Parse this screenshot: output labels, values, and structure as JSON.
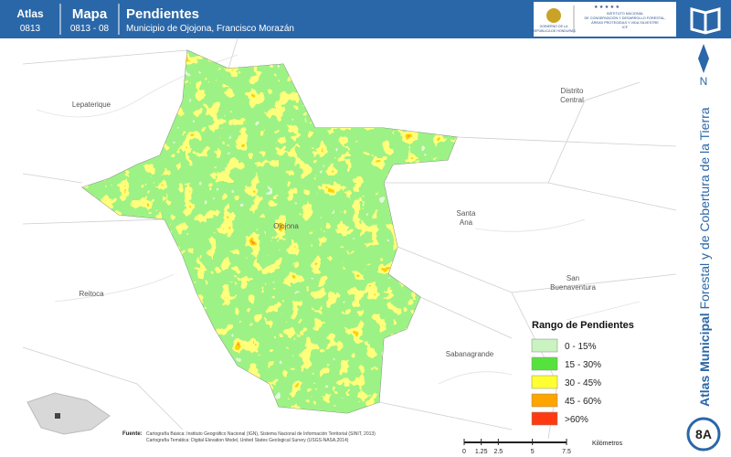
{
  "header": {
    "atlas_label": "Atlas",
    "atlas_code": "0813",
    "map_label": "Mapa",
    "map_code": "0813 - 08",
    "title": "Pendientes",
    "subtitle": "Municipio de Ojojona, Francisco Morazán",
    "logo_left": [
      "GOBIERNO DE LA",
      "REPÚBLICA DE HONDURAS"
    ],
    "logo_right": [
      "INSTITUTO NACIONAL",
      "DE CONSERVACIÓN Y DESARROLLO FORESTAL,",
      "ÁREAS PROTEGIDAS Y VIDA SILVESTRE",
      "ICF"
    ]
  },
  "places": [
    {
      "lines": [
        "Lepaterique"
      ]
    },
    {
      "lines": [
        "Distrito",
        "Central"
      ]
    },
    {
      "lines": [
        "Santa",
        "Ana"
      ]
    },
    {
      "lines": [
        "Reitoca"
      ]
    },
    {
      "lines": [
        "San",
        "Buenaventura"
      ]
    },
    {
      "lines": [
        "Sabanagrande"
      ]
    },
    {
      "lines": [
        "Ojojona"
      ]
    }
  ],
  "legend": {
    "title": "Rango de Pendientes",
    "items": [
      {
        "label": "0 - 15%",
        "color": "#c9f3c0"
      },
      {
        "label": "15 - 30%",
        "color": "#56e23c"
      },
      {
        "label": "30 - 45%",
        "color": "#ffff33"
      },
      {
        "label": "45 - 60%",
        "color": "#ffa500"
      },
      {
        "label": ">60%",
        "color": "#ff3a10"
      }
    ]
  },
  "sidebar": {
    "north": "N",
    "title_bold": "Atlas Municipal",
    "title_rest": " Forestal y de Cobertura de la Tierra",
    "badge": "8A"
  },
  "source": {
    "label": "Fuente:",
    "lines": [
      "Cartografía Básica: Instituto Geográfico Nacional (IGN), Sistema Nacional de Información Territorial (SINIT, 2013)",
      "Cartografía Temática: Digital Elevation Model, United States Geological Survey (USGS-NASA,2014)"
    ]
  },
  "scale": {
    "ticks": [
      0,
      1.25,
      2.5,
      5,
      7.5
    ],
    "unit": "Kilómetros"
  }
}
